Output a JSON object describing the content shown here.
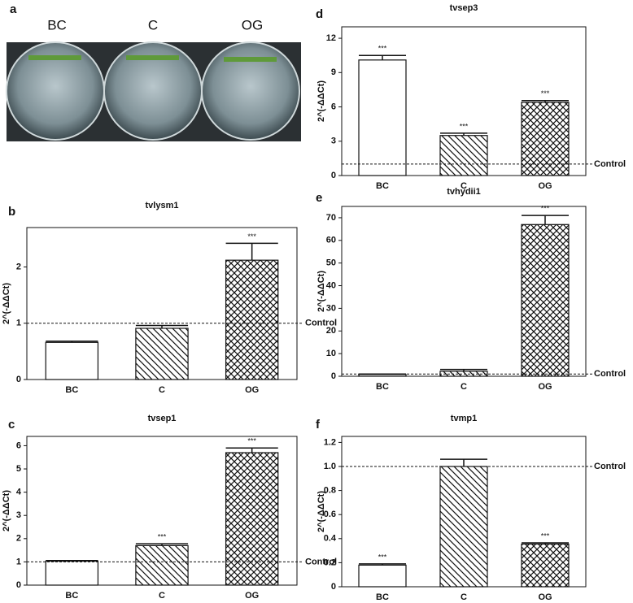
{
  "photo_panel": {
    "letter": "a",
    "labels": [
      "BC",
      "C",
      "OG"
    ]
  },
  "chart_data": [
    {
      "type": "bar",
      "panel": "b",
      "title": "tvlysm1",
      "ylabel": "2^(-ΔΔCt)",
      "categories": [
        "BC",
        "C",
        "OG"
      ],
      "values": [
        0.66,
        0.91,
        2.12
      ],
      "errors": [
        0.02,
        0.05,
        0.3
      ],
      "significance": [
        null,
        null,
        "***"
      ],
      "patterns": [
        "none",
        "diagonal",
        "crosshatch"
      ],
      "ylim": [
        0,
        2.7
      ],
      "yticks": [
        0,
        1,
        2
      ],
      "reference_line": {
        "value": 1,
        "label": "Control"
      }
    },
    {
      "type": "bar",
      "panel": "c",
      "title": "tvsep1",
      "ylabel": "2^(-ΔΔCt)",
      "categories": [
        "BC",
        "C",
        "OG"
      ],
      "values": [
        1.03,
        1.7,
        5.7
      ],
      "errors": [
        0.03,
        0.08,
        0.2
      ],
      "significance": [
        null,
        "***",
        "***"
      ],
      "patterns": [
        "none",
        "diagonal",
        "crosshatch"
      ],
      "ylim": [
        0,
        6.4
      ],
      "yticks": [
        0,
        1,
        2,
        3,
        4,
        5,
        6
      ],
      "reference_line": {
        "value": 1,
        "label": "Control"
      }
    },
    {
      "type": "bar",
      "panel": "d",
      "title": "tvsep3",
      "ylabel": "2^(-ΔΔCt)",
      "categories": [
        "BC",
        "C",
        "OG"
      ],
      "values": [
        10.1,
        3.5,
        6.4
      ],
      "errors": [
        0.4,
        0.2,
        0.15
      ],
      "significance": [
        "***",
        "***",
        "***"
      ],
      "patterns": [
        "none",
        "diagonal",
        "crosshatch"
      ],
      "ylim": [
        0,
        13
      ],
      "yticks": [
        0,
        3,
        6,
        9,
        12
      ],
      "reference_line": {
        "value": 1,
        "label": "Control"
      }
    },
    {
      "type": "bar",
      "panel": "e",
      "title": "tvhydii1",
      "ylabel": "2^(-ΔΔCt)",
      "categories": [
        "BC",
        "C",
        "OG"
      ],
      "values": [
        0.8,
        2.2,
        67
      ],
      "errors": [
        0.2,
        0.8,
        4
      ],
      "significance": [
        null,
        null,
        "***"
      ],
      "patterns": [
        "none",
        "diagonal",
        "crosshatch"
      ],
      "ylim": [
        0,
        75
      ],
      "yticks": [
        0,
        10,
        20,
        30,
        40,
        50,
        60,
        70
      ],
      "reference_line": {
        "value": 1,
        "label": "Control"
      }
    },
    {
      "type": "bar",
      "panel": "f",
      "title": "tvmp1",
      "ylabel": "2^(-ΔΔCt)",
      "categories": [
        "BC",
        "C",
        "OG"
      ],
      "values": [
        0.18,
        1.0,
        0.355
      ],
      "errors": [
        0.01,
        0.06,
        0.01
      ],
      "significance": [
        "***",
        null,
        "***"
      ],
      "patterns": [
        "none",
        "diagonal",
        "crosshatch"
      ],
      "ylim": [
        0,
        1.25
      ],
      "yticks": [
        0,
        {
          "value": 0.2,
          "label": "0.2"
        },
        {
          "value": 0.4,
          "label": "0.4"
        },
        {
          "value": 0.6,
          "label": "0.6"
        },
        {
          "value": 0.8,
          "label": "0.8"
        },
        {
          "value": 1,
          "label": "1.0"
        },
        {
          "value": 1.2,
          "label": "1.2"
        }
      ],
      "reference_line": {
        "value": 1,
        "label": "Control"
      }
    }
  ]
}
